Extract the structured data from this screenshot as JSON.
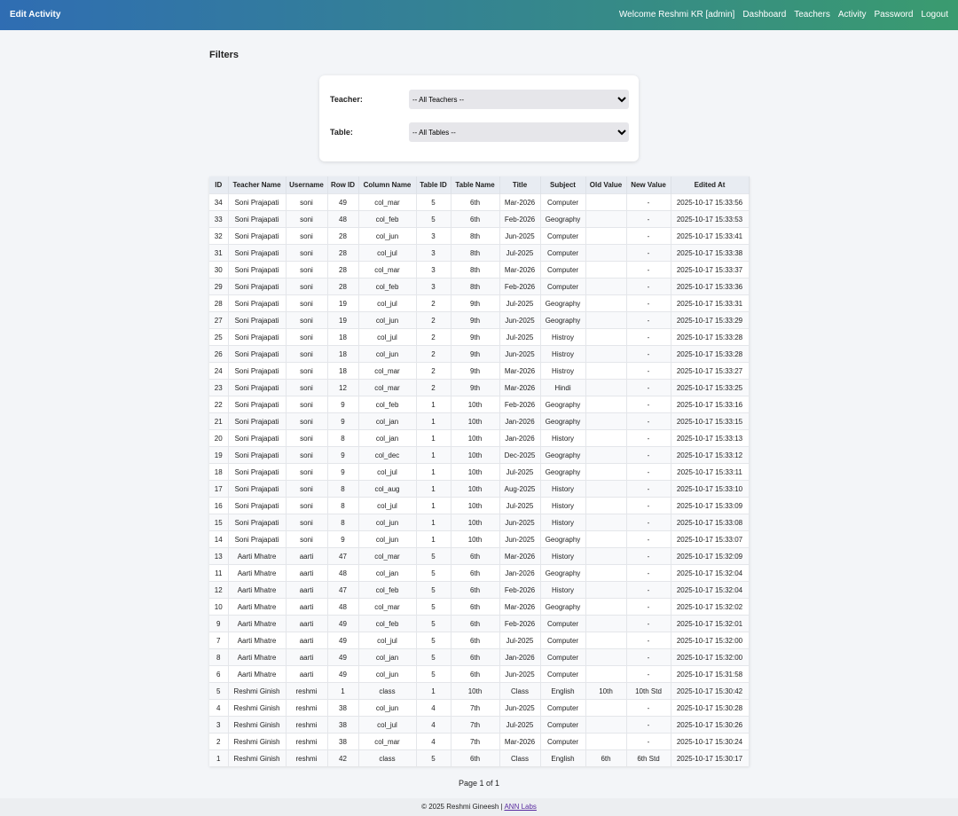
{
  "header": {
    "title": "Edit Activity",
    "welcome": "Welcome Reshmi KR [admin]",
    "nav": [
      "Dashboard",
      "Teachers",
      "Activity",
      "Password",
      "Logout"
    ]
  },
  "filters": {
    "heading": "Filters",
    "teacher_label": "Teacher:",
    "teacher_value": "-- All Teachers --",
    "table_label": "Table:",
    "table_value": "-- All Tables --"
  },
  "table": {
    "columns": [
      "ID",
      "Teacher Name",
      "Username",
      "Row ID",
      "Column Name",
      "Table ID",
      "Table Name",
      "Title",
      "Subject",
      "Old Value",
      "New Value",
      "Edited At"
    ],
    "rows": [
      [
        "34",
        "Soni Prajapati",
        "soni",
        "49",
        "col_mar",
        "5",
        "6th",
        "Mar-2026",
        "Computer",
        null,
        "-",
        "2025-10-17 15:33:56"
      ],
      [
        "33",
        "Soni Prajapati",
        "soni",
        "48",
        "col_feb",
        "5",
        "6th",
        "Feb-2026",
        "Geography",
        null,
        "-",
        "2025-10-17 15:33:53"
      ],
      [
        "32",
        "Soni Prajapati",
        "soni",
        "28",
        "col_jun",
        "3",
        "8th",
        "Jun-2025",
        "Computer",
        null,
        "-",
        "2025-10-17 15:33:41"
      ],
      [
        "31",
        "Soni Prajapati",
        "soni",
        "28",
        "col_jul",
        "3",
        "8th",
        "Jul-2025",
        "Computer",
        null,
        "-",
        "2025-10-17 15:33:38"
      ],
      [
        "30",
        "Soni Prajapati",
        "soni",
        "28",
        "col_mar",
        "3",
        "8th",
        "Mar-2026",
        "Computer",
        null,
        "-",
        "2025-10-17 15:33:37"
      ],
      [
        "29",
        "Soni Prajapati",
        "soni",
        "28",
        "col_feb",
        "3",
        "8th",
        "Feb-2026",
        "Computer",
        null,
        "-",
        "2025-10-17 15:33:36"
      ],
      [
        "28",
        "Soni Prajapati",
        "soni",
        "19",
        "col_jul",
        "2",
        "9th",
        "Jul-2025",
        "Geography",
        null,
        "-",
        "2025-10-17 15:33:31"
      ],
      [
        "27",
        "Soni Prajapati",
        "soni",
        "19",
        "col_jun",
        "2",
        "9th",
        "Jun-2025",
        "Geography",
        null,
        "-",
        "2025-10-17 15:33:29"
      ],
      [
        "25",
        "Soni Prajapati",
        "soni",
        "18",
        "col_jul",
        "2",
        "9th",
        "Jul-2025",
        "Histroy",
        null,
        "-",
        "2025-10-17 15:33:28"
      ],
      [
        "26",
        "Soni Prajapati",
        "soni",
        "18",
        "col_jun",
        "2",
        "9th",
        "Jun-2025",
        "Histroy",
        null,
        "-",
        "2025-10-17 15:33:28"
      ],
      [
        "24",
        "Soni Prajapati",
        "soni",
        "18",
        "col_mar",
        "2",
        "9th",
        "Mar-2026",
        "Histroy",
        null,
        "-",
        "2025-10-17 15:33:27"
      ],
      [
        "23",
        "Soni Prajapati",
        "soni",
        "12",
        "col_mar",
        "2",
        "9th",
        "Mar-2026",
        "Hindi",
        null,
        "-",
        "2025-10-17 15:33:25"
      ],
      [
        "22",
        "Soni Prajapati",
        "soni",
        "9",
        "col_feb",
        "1",
        "10th",
        "Feb-2026",
        "Geography",
        null,
        "-",
        "2025-10-17 15:33:16"
      ],
      [
        "21",
        "Soni Prajapati",
        "soni",
        "9",
        "col_jan",
        "1",
        "10th",
        "Jan-2026",
        "Geography",
        null,
        "-",
        "2025-10-17 15:33:15"
      ],
      [
        "20",
        "Soni Prajapati",
        "soni",
        "8",
        "col_jan",
        "1",
        "10th",
        "Jan-2026",
        "History",
        null,
        "-",
        "2025-10-17 15:33:13"
      ],
      [
        "19",
        "Soni Prajapati",
        "soni",
        "9",
        "col_dec",
        "1",
        "10th",
        "Dec-2025",
        "Geography",
        null,
        "-",
        "2025-10-17 15:33:12"
      ],
      [
        "18",
        "Soni Prajapati",
        "soni",
        "9",
        "col_jul",
        "1",
        "10th",
        "Jul-2025",
        "Geography",
        null,
        "-",
        "2025-10-17 15:33:11"
      ],
      [
        "17",
        "Soni Prajapati",
        "soni",
        "8",
        "col_aug",
        "1",
        "10th",
        "Aug-2025",
        "History",
        null,
        "-",
        "2025-10-17 15:33:10"
      ],
      [
        "16",
        "Soni Prajapati",
        "soni",
        "8",
        "col_jul",
        "1",
        "10th",
        "Jul-2025",
        "History",
        null,
        "-",
        "2025-10-17 15:33:09"
      ],
      [
        "15",
        "Soni Prajapati",
        "soni",
        "8",
        "col_jun",
        "1",
        "10th",
        "Jun-2025",
        "History",
        null,
        "-",
        "2025-10-17 15:33:08"
      ],
      [
        "14",
        "Soni Prajapati",
        "soni",
        "9",
        "col_jun",
        "1",
        "10th",
        "Jun-2025",
        "Geography",
        null,
        "-",
        "2025-10-17 15:33:07"
      ],
      [
        "13",
        "Aarti Mhatre",
        "aarti",
        "47",
        "col_mar",
        "5",
        "6th",
        "Mar-2026",
        "History",
        null,
        "-",
        "2025-10-17 15:32:09"
      ],
      [
        "11",
        "Aarti Mhatre",
        "aarti",
        "48",
        "col_jan",
        "5",
        "6th",
        "Jan-2026",
        "Geography",
        null,
        "-",
        "2025-10-17 15:32:04"
      ],
      [
        "12",
        "Aarti Mhatre",
        "aarti",
        "47",
        "col_feb",
        "5",
        "6th",
        "Feb-2026",
        "History",
        null,
        "-",
        "2025-10-17 15:32:04"
      ],
      [
        "10",
        "Aarti Mhatre",
        "aarti",
        "48",
        "col_mar",
        "5",
        "6th",
        "Mar-2026",
        "Geography",
        null,
        "-",
        "2025-10-17 15:32:02"
      ],
      [
        "9",
        "Aarti Mhatre",
        "aarti",
        "49",
        "col_feb",
        "5",
        "6th",
        "Feb-2026",
        "Computer",
        null,
        "-",
        "2025-10-17 15:32:01"
      ],
      [
        "7",
        "Aarti Mhatre",
        "aarti",
        "49",
        "col_jul",
        "5",
        "6th",
        "Jul-2025",
        "Computer",
        null,
        "-",
        "2025-10-17 15:32:00"
      ],
      [
        "8",
        "Aarti Mhatre",
        "aarti",
        "49",
        "col_jan",
        "5",
        "6th",
        "Jan-2026",
        "Computer",
        null,
        "-",
        "2025-10-17 15:32:00"
      ],
      [
        "6",
        "Aarti Mhatre",
        "aarti",
        "49",
        "col_jun",
        "5",
        "6th",
        "Jun-2025",
        "Computer",
        null,
        "-",
        "2025-10-17 15:31:58"
      ],
      [
        "5",
        "Reshmi Ginish",
        "reshmi",
        "1",
        "class",
        "1",
        "10th",
        "Class",
        "English",
        "10th",
        "10th Std",
        "2025-10-17 15:30:42"
      ],
      [
        "4",
        "Reshmi Ginish",
        "reshmi",
        "38",
        "col_jun",
        "4",
        "7th",
        "Jun-2025",
        "Computer",
        null,
        "-",
        "2025-10-17 15:30:28"
      ],
      [
        "3",
        "Reshmi Ginish",
        "reshmi",
        "38",
        "col_jul",
        "4",
        "7th",
        "Jul-2025",
        "Computer",
        null,
        "-",
        "2025-10-17 15:30:26"
      ],
      [
        "2",
        "Reshmi Ginish",
        "reshmi",
        "38",
        "col_mar",
        "4",
        "7th",
        "Mar-2026",
        "Computer",
        null,
        "-",
        "2025-10-17 15:30:24"
      ],
      [
        "1",
        "Reshmi Ginish",
        "reshmi",
        "42",
        "class",
        "5",
        "6th",
        "Class",
        "English",
        "6th",
        "6th Std",
        "2025-10-17 15:30:17"
      ]
    ]
  },
  "pagination": "Page 1 of 1",
  "footer": {
    "copyright": "© 2025 Reshmi Gineesh",
    "separator": "|",
    "link": "ANN Labs"
  }
}
